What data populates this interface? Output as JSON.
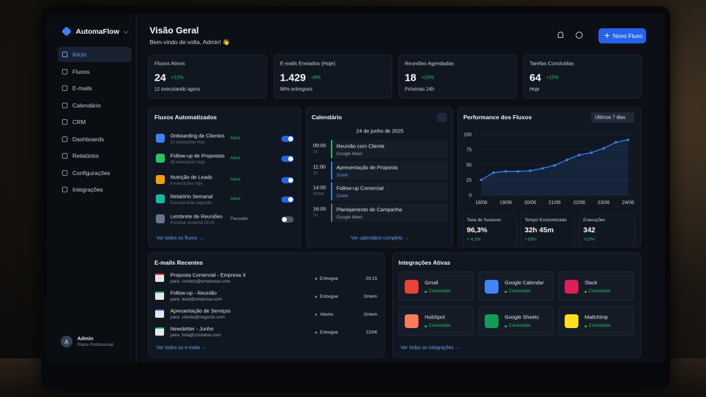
{
  "sidebar": {
    "brand": "AutomaFlow",
    "nav": [
      "Início",
      "Fluxos",
      "E-mails",
      "Calendário",
      "CRM",
      "Dashboards",
      "Relatórios",
      "Configurações",
      "Integrações"
    ],
    "user": {
      "initial": "A",
      "name": "Admin",
      "plan": "Plano Profissional"
    }
  },
  "header": {
    "title": "Visão Geral",
    "subtitle": "Bem-vindo de volta, Admin! 👋",
    "button": "Novo Fluxo"
  },
  "stats": [
    {
      "label": "Fluxos Ativos",
      "value": "24",
      "change": "+12%",
      "note": "12 executando agora"
    },
    {
      "label": "E-mails Enviados (Hoje)",
      "value": "1.429",
      "change": "+8%",
      "note": "98% entregues"
    },
    {
      "label": "Reuniões Agendadas",
      "value": "18",
      "change": "+20%",
      "note": "Próximas 24h"
    },
    {
      "label": "Tarefas Concluídas",
      "value": "64",
      "change": "+15%",
      "note": "Hoje"
    }
  ],
  "flows": {
    "title": "Fluxos Automatizados",
    "items": [
      {
        "name": "Onboarding de Clientes",
        "detail": "12 execuções hoje",
        "status": "Ativo",
        "on": true,
        "color": "#3b82f6"
      },
      {
        "name": "Follow-up de Propostas",
        "detail": "45 execuções hoje",
        "status": "Ativo",
        "on": true,
        "color": "#22c55e"
      },
      {
        "name": "Nutrição de Leads",
        "detail": "8 execuções hoje",
        "status": "Ativo",
        "on": true,
        "color": "#f59e0b"
      },
      {
        "name": "Relatório Semanal",
        "detail": "Executa toda segunda",
        "status": "Ativo",
        "on": true,
        "color": "#14b8a6"
      },
      {
        "name": "Lembrete de Reuniões",
        "detail": "Próxima: Amanhã 09:00",
        "status": "Pausado",
        "on": false,
        "color": "#64748b"
      }
    ],
    "link": "Ver todos os fluxos →"
  },
  "calendar": {
    "title": "Calendário",
    "date": "24 de junho de 2025",
    "events": [
      {
        "time": "09:00",
        "duration": "1h",
        "title": "Reunião com Cliente",
        "place": "Google Meet",
        "color": "#22c55e"
      },
      {
        "time": "11:00",
        "duration": "1h",
        "title": "Apresentação de Proposta",
        "place": "Zoom",
        "color": "#3b82f6"
      },
      {
        "time": "14:00",
        "duration": "30min",
        "title": "Follow-up Comercial",
        "place": "Zoom",
        "color": "#3b82f6"
      },
      {
        "time": "16:00",
        "duration": "1h",
        "title": "Planejamento de Campanha",
        "place": "Google Meet",
        "color": "#64748b"
      }
    ],
    "link": "Ver calendário completo →"
  },
  "performance": {
    "type": "line",
    "title": "Performance dos Fluxos",
    "range": "Últimos 7 dias",
    "categories": [
      "18/06",
      null,
      "19/06",
      null,
      "20/06",
      null,
      "21/06",
      null,
      "22/06",
      null,
      "23/06",
      null,
      "24/06"
    ],
    "values": [
      25,
      37,
      39,
      39,
      40,
      44,
      49,
      58,
      66,
      70,
      77,
      87,
      91
    ],
    "color": "#3b82f6",
    "ylim": [
      0,
      100
    ],
    "yticks": [
      0,
      25,
      50,
      75,
      100
    ],
    "grid": true,
    "metrics": [
      {
        "label": "Taxa de Sucesso",
        "value": "96,3%",
        "change": "+ 4,2%"
      },
      {
        "label": "Tempo Economizado",
        "value": "32h 45m",
        "change": "+18%"
      },
      {
        "label": "Execuções",
        "value": "342",
        "change": "+13%"
      }
    ]
  },
  "emails": {
    "title": "E-mails Recentes",
    "items": [
      {
        "subject": "Proposta Comercial - Empresa X",
        "to": "para: contato@empresax.com",
        "status": "Entregue",
        "time": "09:15",
        "color": "#22c55e"
      },
      {
        "subject": "Follow-up - Reunião",
        "to": "para: lead@empresa.com",
        "status": "Entregue",
        "time": "Ontem",
        "color": "#22c55e"
      },
      {
        "subject": "Apresentação de Serviços",
        "to": "para: cliente@negocio.com",
        "status": "Aberto",
        "time": "Ontem",
        "color": "#3b82f6"
      },
      {
        "subject": "Newsletter - Junho",
        "to": "para: lista@contatos.com",
        "status": "Entregue",
        "time": "22/06",
        "color": "#22c55e"
      }
    ],
    "link": "Ver todos os e-mails →"
  },
  "integrations": {
    "title": "Integrações Ativas",
    "items": [
      {
        "name": "Gmail",
        "status": "Conectado",
        "color": "#ea4335"
      },
      {
        "name": "Google Calendar",
        "status": "Conectado",
        "color": "#4285f4"
      },
      {
        "name": "Slack",
        "status": "Conectado",
        "color": "#e01e5a"
      },
      {
        "name": "HubSpot",
        "status": "Conectado",
        "color": "#ff7a59"
      },
      {
        "name": "Google Sheets",
        "status": "Conectado",
        "color": "#0f9d58"
      },
      {
        "name": "Mailchimp",
        "status": "Conectado",
        "color": "#ffe01b"
      }
    ],
    "link": "Ver todas as integrações →"
  }
}
